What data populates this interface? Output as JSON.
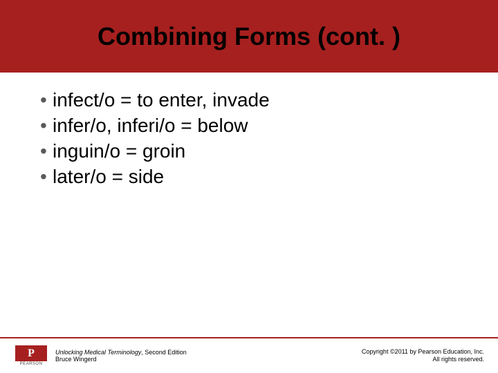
{
  "slide": {
    "title": "Combining Forms (cont. )",
    "title_fontsize": 36,
    "title_color": "#000000",
    "title_band_bg": "#a6201f",
    "background": "#ffffff"
  },
  "bullets": {
    "items": [
      "infect/o = to enter, invade",
      "infer/o, inferi/o = below",
      "inguin/o = groin",
      "later/o = side"
    ],
    "fontsize": 28,
    "text_color": "#000000",
    "dot_color": "#595959",
    "dot_char": "•"
  },
  "footer": {
    "line_color": "#a6201f",
    "line_height": 2,
    "line_bottom": 50,
    "logo_bg": "#a6201f",
    "logo_text": "P",
    "logo_label": "PEARSON",
    "logo_label_color": "#444444",
    "book_title": "Unlocking Medical Terminology",
    "book_edition": ", Second Edition",
    "book_author": "Bruce Wingerd",
    "book_fontsize": 9,
    "book_color": "#000000",
    "copyright_line1": "Copyright ©2011 by Pearson Education, Inc.",
    "copyright_line2": "All rights reserved.",
    "copyright_fontsize": 9,
    "copyright_color": "#000000"
  }
}
